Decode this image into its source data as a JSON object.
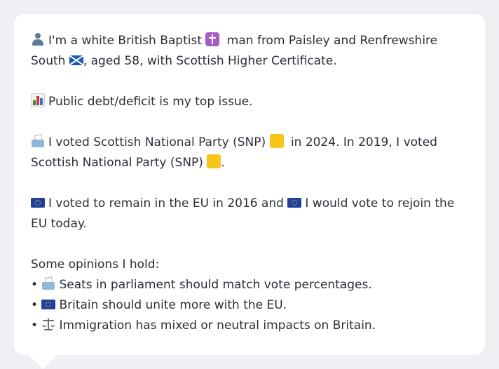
{
  "profile": {
    "line1_part1": "I'm a white British Baptist",
    "line1_part2": "man from Paisley and Renfrewshire South",
    "line1_part3": ", aged 58, with Scottish Higher Certificate.",
    "top_issue": "Public debt/deficit is my top issue.",
    "vote_part1": "I voted Scottish National Party (SNP)",
    "vote_part2": "in 2024. In 2019, I voted Scottish National Party (SNP)",
    "vote_part3": ".",
    "eu_part1": "I voted to remain in the EU in 2016 and",
    "eu_part2": "I would vote to rejoin the EU today.",
    "opinions_heading": "Some opinions I hold:",
    "opinions": [
      "Seats in parliament should match vote percentages.",
      "Britain should unite more with the EU.",
      "Immigration has mixed or neutral impacts on Britain."
    ],
    "bullet": "•"
  },
  "icons": {
    "person": "person-silhouette-icon",
    "religion": "latin-cross-icon",
    "region_flag": "scotland-flag-icon",
    "issue": "bar-chart-icon",
    "vote": "ballot-box-icon",
    "party_color": "yellow-square-icon",
    "eu": "eu-flag-icon",
    "opinion_icons": [
      "ballot-box-icon",
      "eu-flag-icon",
      "balance-scale-icon"
    ]
  },
  "colors": {
    "background": "#eff0f3",
    "card": "#ffffff",
    "text": "#2b2f36",
    "snp_yellow": "#f7c41a"
  }
}
